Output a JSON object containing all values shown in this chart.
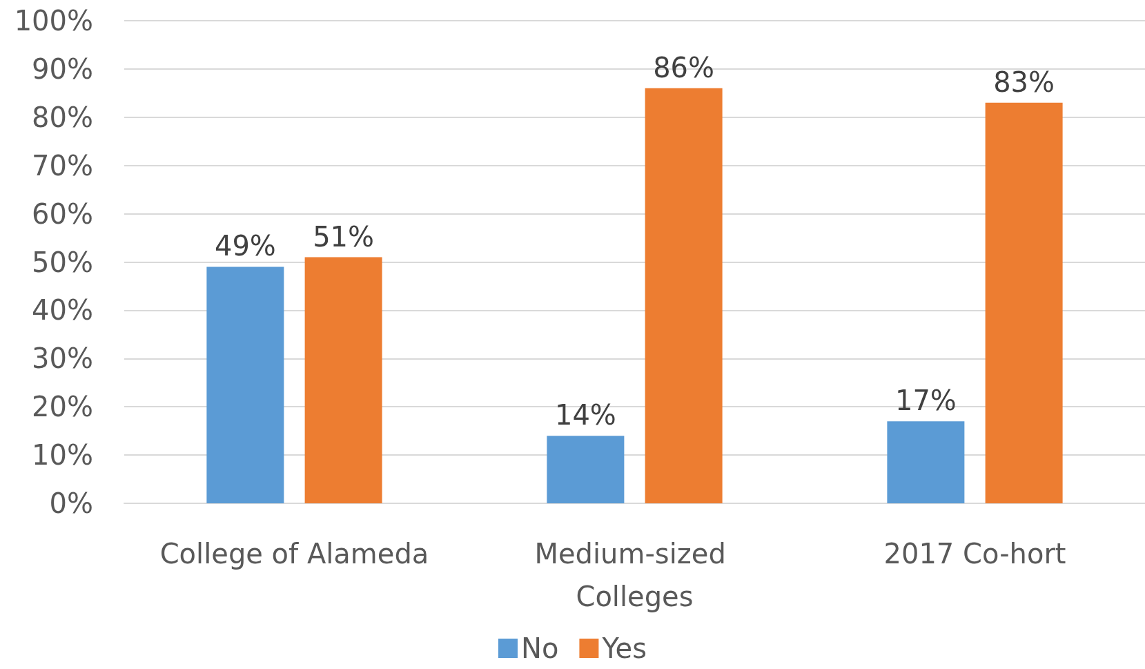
{
  "chart_data": {
    "type": "bar",
    "categories": [
      "College of Alameda",
      "Medium-sized Colleges",
      "2017 Co-hort"
    ],
    "series": [
      {
        "name": "No",
        "color": "#5b9bd5",
        "values": [
          49,
          14,
          17
        ],
        "value_labels": [
          "49%",
          "14%",
          "17%"
        ]
      },
      {
        "name": "Yes",
        "color": "#ed7d31",
        "values": [
          51,
          86,
          83
        ],
        "value_labels": [
          "51%",
          "86%",
          "83%"
        ]
      }
    ],
    "ylim": [
      0,
      100
    ],
    "yticks": [
      {
        "value": 0,
        "label": "0%"
      },
      {
        "value": 10,
        "label": "10%"
      },
      {
        "value": 20,
        "label": "20%"
      },
      {
        "value": 30,
        "label": "30%"
      },
      {
        "value": 40,
        "label": "40%"
      },
      {
        "value": 50,
        "label": "50%"
      },
      {
        "value": 60,
        "label": "60%"
      },
      {
        "value": 70,
        "label": "70%"
      },
      {
        "value": 80,
        "label": "80%"
      },
      {
        "value": 90,
        "label": "90%"
      },
      {
        "value": 100,
        "label": "100%"
      }
    ],
    "grid": "y",
    "legend": "bottom"
  }
}
